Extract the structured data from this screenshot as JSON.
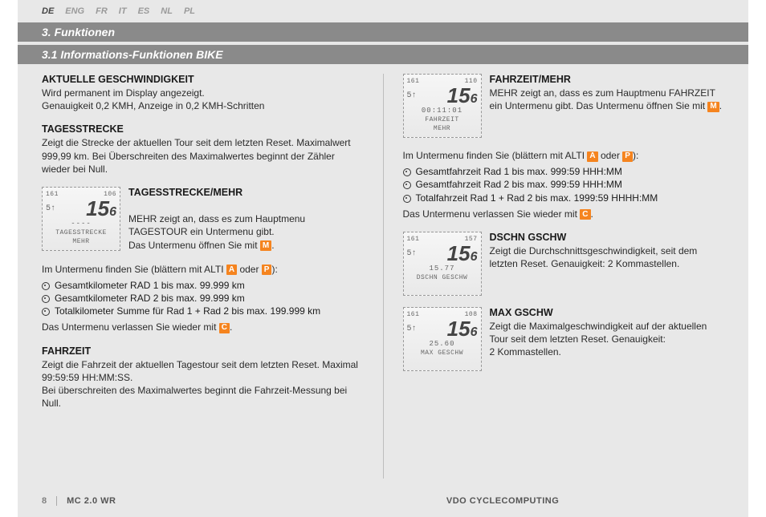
{
  "langs": [
    "DE",
    "ENG",
    "FR",
    "IT",
    "ES",
    "NL",
    "PL"
  ],
  "active_lang_index": 0,
  "section1": "3.  Funktionen",
  "section2": "3.1  Informations-Funktionen BIKE",
  "col1": {
    "b1_title": "AKTUELLE GESCHWINDIGKEIT",
    "b1_body": "Wird permanent im Display angezeigt.\nGenauigkeit 0,2 KMH, Anzeige in 0,2 KMH-Schritten",
    "b2_title": "TAGESSTRECKE",
    "b2_body": "Zeigt die Strecke der aktuellen Tour seit dem letzten Reset. Maximalwert 999,99 km. Bei Überschreiten des Maximalwertes beginnt der Zähler wieder bei Null.",
    "b3_title": "TAGESSTRECKE/MEHR",
    "b3_body_pre": "MEHR zeigt an, dass es zum Hauptmenu TAGESTOUR ein Untermenu gibt.\nDas Untermenu öffnen Sie mit ",
    "b3_post": ".",
    "sub_intro_pre": "Im Untermenu finden Sie (blättern mit ALTI ",
    "sub_intro_mid": " oder ",
    "sub_intro_post": "):",
    "sub_items": [
      "Gesamtkilometer RAD 1 bis max. 99.999 km",
      "Gesamtkilometer RAD 2 bis max. 99.999 km",
      "Totalkilometer Summe für Rad 1 + Rad 2 bis max. 199.999 km"
    ],
    "sub_exit_pre": "Das Untermenu verlassen Sie wieder mit ",
    "sub_exit_post": ".",
    "b4_title": "FAHRZEIT",
    "b4_body": "Zeigt die Fahrzeit der aktuellen Tagestour seit dem letzten Reset. Maximal 99:59:59 HH:MM:SS.\nBei überschreiten des Maximalwertes beginnt die Fahrzeit-Messung bei Null."
  },
  "col2": {
    "b1_title": "FAHRZEIT/MEHR",
    "b1_body_pre": "MEHR zeigt an, dass es zum Hauptmenu FAHRZEIT ein Untermenu gibt. Das Untermenu öffnen Sie mit ",
    "b1_post": ".",
    "sub_intro_pre": "Im Untermenu finden Sie (blättern mit ALTI ",
    "sub_intro_mid": " oder ",
    "sub_intro_post": "):",
    "sub_items": [
      "Gesamtfahrzeit Rad 1 bis max. 999:59 HHH:MM",
      "Gesamtfahrzeit Rad 2 bis max. 999:59 HHH:MM",
      "Totalfahrzeit Rad 1 + Rad 2 bis max. 1999:59 HHHH:MM"
    ],
    "sub_exit_pre": "Das Untermenu verlassen Sie wieder mit ",
    "sub_exit_post": ".",
    "b2_title": "DSCHN GSCHW",
    "b2_body": "Zeigt die Durchschnittsgeschwindigkeit, seit dem letzten Reset. Genauigkeit: 2 Kommastellen.",
    "b3_title": "MAX GSCHW",
    "b3_body": "Zeigt die Maximalgeschwindigkeit auf der aktuellen Tour seit dem letzten Reset. Genauigkeit:\n2 Kommastellen."
  },
  "badges": {
    "M": "M",
    "A": "A",
    "P": "P",
    "C": "C"
  },
  "lcd": {
    "tagesstrecke": {
      "top_l": "161",
      "top_r": "106",
      "mid_l": "5↑",
      "big": "15",
      "dec": "6",
      "val": "----",
      "label1": "TAGESSTRECKE",
      "label2": "MEHR"
    },
    "fahrzeit": {
      "top_l": "161",
      "top_r": "110",
      "mid_l": "5↑",
      "big": "15",
      "dec": "6",
      "val": "00:11:01",
      "label1": "FAHRZEIT",
      "label2": "MEHR"
    },
    "dschn": {
      "top_l": "161",
      "top_r": "157",
      "mid_l": "5↑",
      "big": "15",
      "dec": "6",
      "val": "15.77",
      "label1": "DSCHN GESCHW",
      "label2": ""
    },
    "max": {
      "top_l": "161",
      "top_r": "108",
      "mid_l": "5↑",
      "big": "15",
      "dec": "6",
      "val": "25.60",
      "label1": "MAX GESCHW",
      "label2": ""
    }
  },
  "footer": {
    "page": "8",
    "model": "MC 2.0 WR",
    "brand": "VDO CYCLECOMPUTING"
  }
}
